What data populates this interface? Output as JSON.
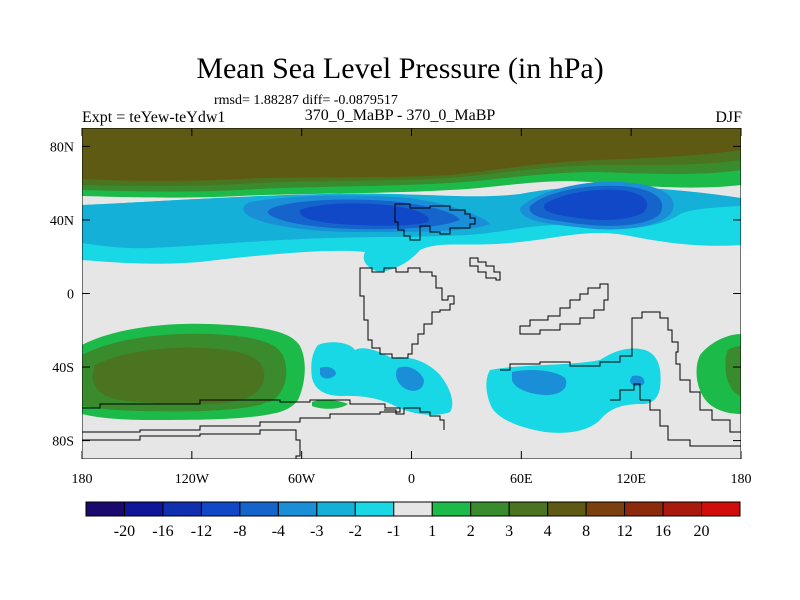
{
  "chart_data": {
    "type": "heatmap",
    "title": "Mean Sea Level Pressure (in hPa)",
    "stats_text": "rmsd= 1.88287 diff= -0.0879517",
    "left_label": "Expt = teYew-teYdw1",
    "center_label": "370_0_MaBP - 370_0_MaBP",
    "right_label": "DJF",
    "xlim": [
      -180,
      180
    ],
    "ylim": [
      -90,
      90
    ],
    "x_ticks": [
      {
        "value": -180,
        "label": "180"
      },
      {
        "value": -120,
        "label": "120W"
      },
      {
        "value": -60,
        "label": "60W"
      },
      {
        "value": 0,
        "label": "0"
      },
      {
        "value": 60,
        "label": "60E"
      },
      {
        "value": 120,
        "label": "120E"
      },
      {
        "value": 180,
        "label": "180"
      }
    ],
    "y_ticks": [
      {
        "value": 80,
        "label": "80N"
      },
      {
        "value": 40,
        "label": "40N"
      },
      {
        "value": 0,
        "label": "0"
      },
      {
        "value": -40,
        "label": "40S"
      },
      {
        "value": -80,
        "label": "80S"
      }
    ],
    "colorbar": {
      "colors": [
        "#1a0a6e",
        "#10169a",
        "#1030b0",
        "#1048c8",
        "#1464cc",
        "#1b8ed8",
        "#14b0d8",
        "#17d8e4",
        "#e6e6e6",
        "#1cba48",
        "#3a8a2e",
        "#4a7420",
        "#5e5a14",
        "#7a4010",
        "#8c2a0c",
        "#aa1a0c",
        "#d00c0c"
      ],
      "labels": [
        "-20",
        "-16",
        "-12",
        "-8",
        "-4",
        "-3",
        "-2",
        "-1",
        "1",
        "2",
        "3",
        "4",
        "8",
        "12",
        "16",
        "20"
      ]
    },
    "regions": [
      {
        "name": "arctic-high-brown",
        "level": "4 to 8",
        "lon_range": [
          -180,
          180
        ],
        "lat_range": [
          55,
          90
        ]
      },
      {
        "name": "north-pacific-low",
        "level": "-8 to -4",
        "lon_range": [
          -90,
          -10
        ],
        "lat_range": [
          25,
          55
        ]
      },
      {
        "name": "siberian-low",
        "level": "-8 to -4",
        "lon_range": [
          60,
          140
        ],
        "lat_range": [
          30,
          55
        ]
      },
      {
        "name": "south-pacific-high",
        "level": "3 to 4",
        "lon_range": [
          -180,
          -80
        ],
        "lat_range": [
          -70,
          -15
        ]
      },
      {
        "name": "southern-low-west",
        "level": "-2 to -1",
        "lon_range": [
          -45,
          15
        ],
        "lat_range": [
          -65,
          -25
        ]
      },
      {
        "name": "southern-low-east",
        "level": "-3 to -1",
        "lon_range": [
          45,
          135
        ],
        "lat_range": [
          -75,
          -25
        ]
      },
      {
        "name": "southeast-high",
        "level": "2 to 3",
        "lon_range": [
          155,
          180
        ],
        "lat_range": [
          -65,
          -20
        ]
      }
    ]
  }
}
